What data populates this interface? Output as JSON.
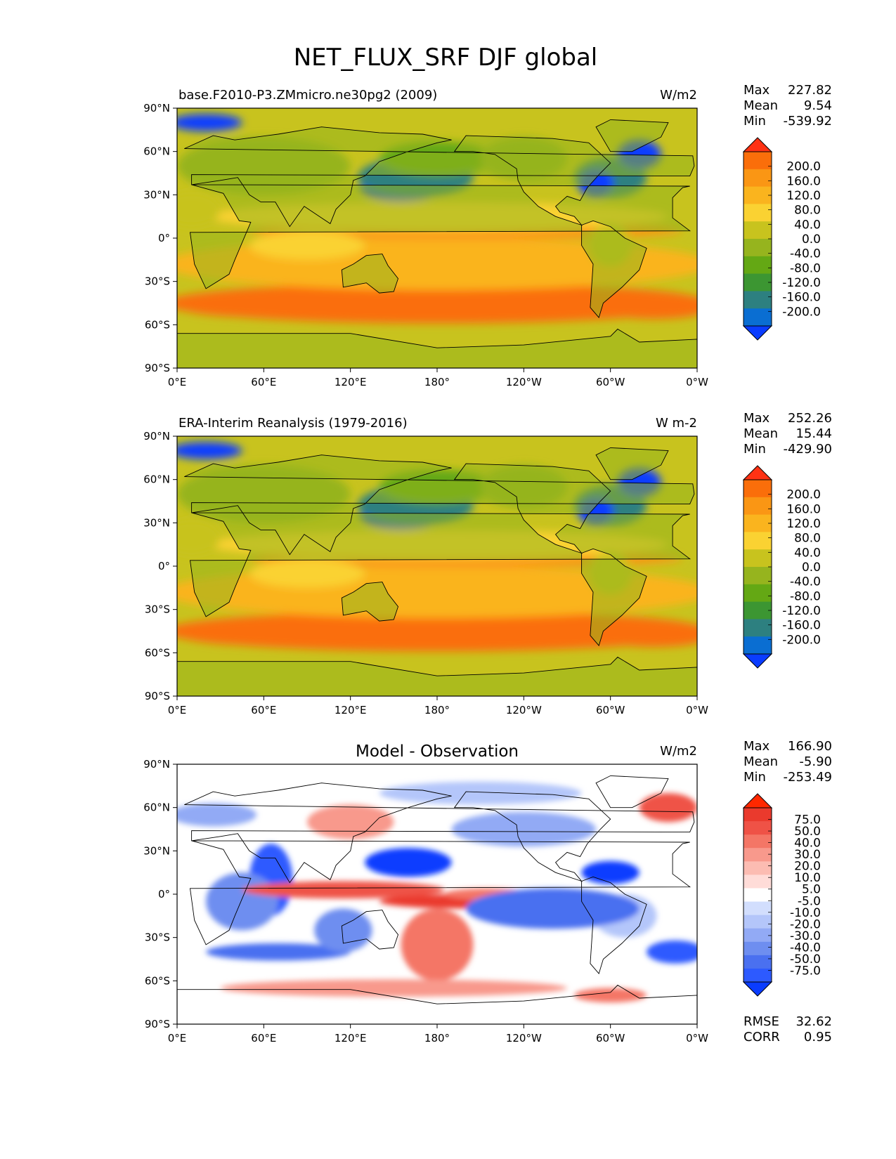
{
  "figure": {
    "title": "NET_FLUX_SRF DJF global"
  },
  "colors": {
    "main_cmap": [
      "#0a3cff",
      "#0a6ed2",
      "#2d8080",
      "#3c9632",
      "#64a814",
      "#96b41e",
      "#c8c31e",
      "#fad232",
      "#fab41e",
      "#fa9614",
      "#fa6e0a",
      "#ff3214"
    ],
    "diff_cmap": [
      "#0a3cff",
      "#2d5aff",
      "#4a70f0",
      "#6e8ef0",
      "#92aaf5",
      "#b4c6fa",
      "#d2defd",
      "#ffffff",
      "#ffdcd8",
      "#fcbcb2",
      "#f8998c",
      "#f47666",
      "#ef5246",
      "#ea3a2d",
      "#ff2800"
    ],
    "contour": "#000000"
  },
  "chart_data": [
    {
      "type": "heatmap",
      "projection": "equirectangular",
      "title": "base.F2010-P3.ZMmicro.ne30pg2 (2009)",
      "units": "W/m2",
      "xlim": [
        0,
        360
      ],
      "ylim": [
        -90,
        90
      ],
      "xticks": [
        "0°E",
        "60°E",
        "120°E",
        "180°",
        "120°W",
        "60°W",
        "0°W"
      ],
      "yticks": [
        "90°N",
        "60°N",
        "30°N",
        "0°",
        "30°S",
        "60°S",
        "90°S"
      ],
      "stats": {
        "max_label": "Max",
        "max": "227.82",
        "mean_label": "Mean",
        "mean": "9.54",
        "min_label": "Min",
        "min": "-539.92"
      },
      "colorbar_levels": [
        "200.0",
        "160.0",
        "120.0",
        "80.0",
        "40.0",
        "0.0",
        "-40.0",
        "-80.0",
        "-120.0",
        "-160.0",
        "-200.0"
      ],
      "colorbar_extend": "both"
    },
    {
      "type": "heatmap",
      "projection": "equirectangular",
      "title": "ERA-Interim Reanalysis (1979-2016)",
      "units": "W m-2",
      "xlim": [
        0,
        360
      ],
      "ylim": [
        -90,
        90
      ],
      "xticks": [
        "0°E",
        "60°E",
        "120°E",
        "180°",
        "120°W",
        "60°W",
        "0°W"
      ],
      "yticks": [
        "90°N",
        "60°N",
        "30°N",
        "0°",
        "30°S",
        "60°S",
        "90°S"
      ],
      "stats": {
        "max_label": "Max",
        "max": "252.26",
        "mean_label": "Mean",
        "mean": "15.44",
        "min_label": "Min",
        "min": "-429.90"
      },
      "colorbar_levels": [
        "200.0",
        "160.0",
        "120.0",
        "80.0",
        "40.0",
        "0.0",
        "-40.0",
        "-80.0",
        "-120.0",
        "-160.0",
        "-200.0"
      ],
      "colorbar_extend": "both"
    },
    {
      "type": "heatmap",
      "projection": "equirectangular",
      "title": "Model - Observation",
      "units": "W/m2",
      "xlim": [
        0,
        360
      ],
      "ylim": [
        -90,
        90
      ],
      "xticks": [
        "0°E",
        "60°E",
        "120°E",
        "180°",
        "120°W",
        "60°W",
        "0°W"
      ],
      "yticks": [
        "90°N",
        "60°N",
        "30°N",
        "0°",
        "30°S",
        "60°S",
        "90°S"
      ],
      "stats": {
        "max_label": "Max",
        "max": "166.90",
        "mean_label": "Mean",
        "mean": "-5.90",
        "min_label": "Min",
        "min": "-253.49",
        "rmse_label": "RMSE",
        "rmse": "32.62",
        "corr_label": "CORR",
        "corr": "0.95"
      },
      "colorbar_levels": [
        "75.0",
        "50.0",
        "40.0",
        "30.0",
        "20.0",
        "10.0",
        "5.0",
        "-5.0",
        "-10.0",
        "-20.0",
        "-30.0",
        "-40.0",
        "-50.0",
        "-75.0"
      ],
      "colorbar_extend": "both"
    }
  ]
}
